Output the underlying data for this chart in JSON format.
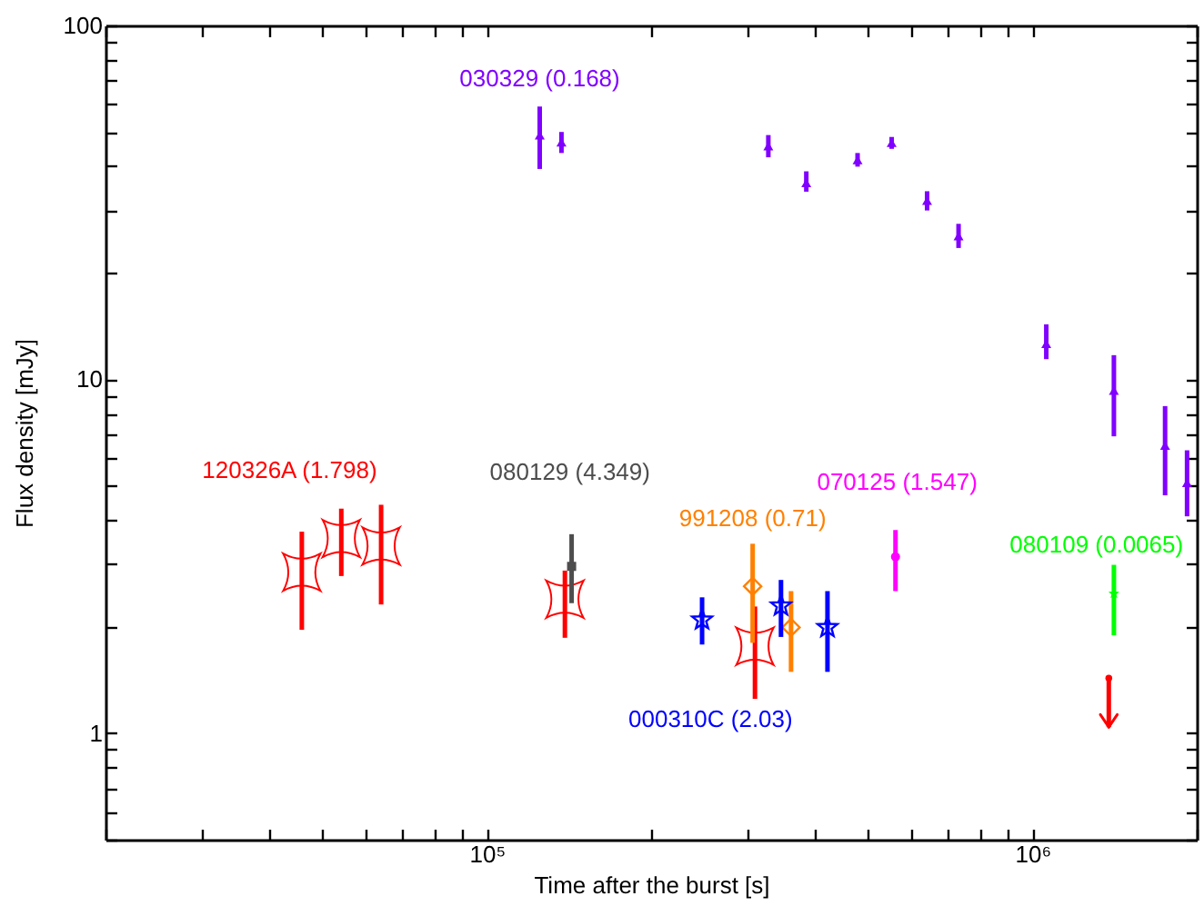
{
  "chart_data": {
    "type": "scatter",
    "xlabel": "Time after the burst [s]",
    "ylabel": "Flux density [mJy]",
    "log": "xy",
    "grid": false,
    "xlim": [
      20000,
      2000000
    ],
    "xticks": [
      {
        "value": 20000,
        "label": null
      },
      {
        "value": 30000,
        "label": null
      },
      {
        "value": 40000,
        "label": null
      },
      {
        "value": 50000,
        "label": null
      },
      {
        "value": 60000,
        "label": null
      },
      {
        "value": 70000,
        "label": null
      },
      {
        "value": 80000,
        "label": null
      },
      {
        "value": 90000,
        "label": null
      },
      {
        "value": 100000,
        "label": "10⁵"
      },
      {
        "value": 200000,
        "label": null
      },
      {
        "value": 300000,
        "label": null
      },
      {
        "value": 400000,
        "label": null
      },
      {
        "value": 500000,
        "label": null
      },
      {
        "value": 600000,
        "label": null
      },
      {
        "value": 700000,
        "label": null
      },
      {
        "value": 800000,
        "label": null
      },
      {
        "value": 900000,
        "label": null
      },
      {
        "value": 1000000,
        "label": "10⁶"
      },
      {
        "value": 2000000,
        "label": null
      }
    ],
    "ylim": [
      0.5,
      100
    ],
    "yticks": [
      {
        "value": 0.5,
        "label": null
      },
      {
        "value": 0.6,
        "label": null
      },
      {
        "value": 0.7,
        "label": null
      },
      {
        "value": 0.8,
        "label": null
      },
      {
        "value": 0.9,
        "label": null
      },
      1,
      {
        "value": 2,
        "label": null
      },
      {
        "value": 3,
        "label": null
      },
      {
        "value": 4,
        "label": null
      },
      {
        "value": 5,
        "label": null
      },
      {
        "value": 6,
        "label": null
      },
      {
        "value": 7,
        "label": null
      },
      {
        "value": 8,
        "label": null
      },
      {
        "value": 9,
        "label": null
      },
      10,
      {
        "value": 20,
        "label": null
      },
      {
        "value": 30,
        "label": null
      },
      {
        "value": 40,
        "label": null
      },
      {
        "value": 50,
        "label": null
      },
      {
        "value": 60,
        "label": null
      },
      {
        "value": 70,
        "label": null
      },
      {
        "value": 80,
        "label": null
      },
      {
        "value": 90,
        "label": null
      },
      100
    ],
    "series": [
      {
        "name": "030329 (0.168)",
        "color": "#8000ff",
        "marker": "triangle",
        "x": [
          125000,
          137000,
          328000,
          385000,
          478000,
          552000,
          641000,
          732000,
          1060000,
          1410000,
          1750000,
          1920000
        ],
        "values": [
          49,
          46.8,
          45.6,
          35.9,
          41.7,
          46.6,
          32,
          25.4,
          12.6,
          9.3,
          6.5,
          5.1
        ],
        "errors": [
          [
            39.3,
            59
          ],
          [
            43.6,
            50
          ],
          [
            42.4,
            49
          ],
          [
            33.9,
            38.7
          ],
          [
            39.9,
            43.6
          ],
          [
            44.8,
            48.4
          ],
          [
            30,
            34
          ],
          [
            23.5,
            27.5
          ],
          [
            11.4,
            14.3
          ],
          [
            6.9,
            11.7
          ],
          [
            4.7,
            8.4
          ],
          [
            4.1,
            6.3
          ]
        ]
      },
      {
        "name": "120326A (1.798)",
        "color": "#ff0000",
        "marker": "square",
        "x": [
          45800,
          54100,
          64000,
          139000,
          310000
        ],
        "values": [
          2.85,
          3.55,
          3.38,
          2.39,
          1.76
        ],
        "errors": [
          [
            1.96,
            3.71
          ],
          [
            2.78,
            4.31
          ],
          [
            2.31,
            4.42
          ],
          [
            1.86,
            2.88
          ],
          [
            1.25,
            2.28
          ]
        ]
      },
      {
        "name": "080129 (4.349)",
        "color": "#4d4d4d",
        "marker": "square",
        "x": [
          143000
        ],
        "values": [
          2.96
        ],
        "errors": [
          [
            2.33,
            3.65
          ]
        ]
      },
      {
        "name": "991208 (0.71)",
        "color": "#ff8000",
        "marker": "diamond",
        "x": [
          307000,
          361000
        ],
        "values": [
          2.6,
          1.99
        ],
        "errors": [
          [
            1.8,
            3.43
          ],
          [
            1.49,
            2.52
          ]
        ]
      },
      {
        "name": "000310C (2.03)",
        "color": "#0000ff",
        "marker": "star",
        "x": [
          248000,
          346000,
          421000
        ],
        "values": [
          2.09,
          2.29,
          1.99
        ],
        "errors": [
          [
            1.78,
            2.42
          ],
          [
            1.87,
            2.71
          ],
          [
            1.49,
            2.52
          ]
        ]
      },
      {
        "name": "070125 (1.547)",
        "color": "#ff00ff",
        "marker": "circle",
        "x": [
          561000
        ],
        "values": [
          3.15
        ],
        "errors": [
          [
            2.52,
            3.75
          ]
        ]
      },
      {
        "name": "080109 (0.0065)",
        "color": "#00ff00",
        "marker": "star",
        "x": [
          1410000
        ],
        "values": [
          2.48
        ],
        "errors": [
          [
            1.89,
            2.99
          ]
        ]
      },
      {
        "color": "#ff0000",
        "marker": "circle",
        "x": [
          1380000
        ],
        "values": [
          1.43
        ],
        "errors": [
          [
            1.04,
            1.43
          ]
        ]
      }
    ]
  }
}
